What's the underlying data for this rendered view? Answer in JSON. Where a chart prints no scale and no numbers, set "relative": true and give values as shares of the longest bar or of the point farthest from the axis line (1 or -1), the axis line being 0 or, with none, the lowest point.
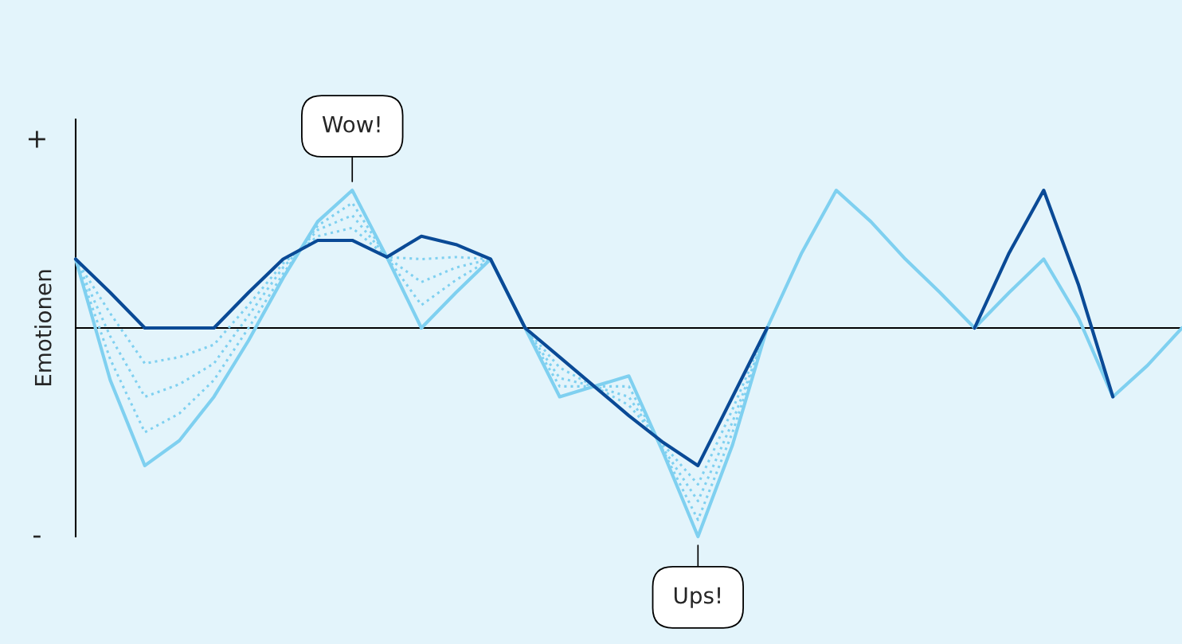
{
  "chart_data": {
    "type": "line",
    "relative": true,
    "ylabel": "Emotionen",
    "legend": false,
    "marker": "none",
    "categories": [
      null,
      null,
      null,
      null,
      null,
      null,
      null,
      null,
      null,
      null,
      null,
      null,
      null,
      null,
      null,
      null,
      null,
      null,
      null,
      null,
      null,
      null,
      null,
      null,
      null,
      null,
      null,
      null,
      null,
      null,
      null,
      null,
      null
    ],
    "series": [
      {
        "color": "#7fd0f0",
        "line_style": "solid",
        "values": [
          0.33,
          -0.25,
          -0.66,
          -0.54,
          -0.33,
          -0.06,
          0.24,
          0.51,
          0.66,
          0.34,
          0,
          0.17,
          0.33,
          0,
          -0.33,
          -0.28,
          -0.23,
          -0.6,
          -1,
          -0.56,
          0,
          0.36,
          0.66,
          0.51,
          0.33,
          0.17,
          0,
          0.17,
          0.33,
          0.05,
          -0.33,
          -0.18,
          0
        ]
      },
      {
        "color": "#7fd0f0",
        "line_style": "dotted",
        "values": [
          0.33,
          0.07,
          -0.17,
          -0.14,
          -0.08,
          0.11,
          0.31,
          0.44,
          0.48,
          0.34,
          0.33,
          0.34,
          0.33,
          0,
          -0.19,
          -0.28,
          -0.37,
          -0.56,
          -0.75,
          -0.39,
          0,
          null,
          null,
          null,
          null,
          null,
          null,
          null,
          null,
          null,
          null,
          null,
          null
        ]
      },
      {
        "color": "#7fd0f0",
        "line_style": "dotted",
        "values": [
          0.33,
          -0.04,
          -0.33,
          -0.27,
          -0.17,
          0.06,
          0.29,
          0.47,
          0.54,
          0.34,
          0.22,
          0.29,
          0.33,
          0,
          -0.24,
          -0.28,
          -0.33,
          -0.58,
          -0.83,
          -0.45,
          0,
          null,
          null,
          null,
          null,
          null,
          null,
          null,
          null,
          null,
          null,
          null,
          null
        ]
      },
      {
        "color": "#7fd0f0",
        "line_style": "dotted",
        "values": [
          0.33,
          -0.15,
          -0.5,
          -0.41,
          -0.25,
          0,
          0.26,
          0.49,
          0.6,
          0.34,
          0.11,
          0.23,
          0.33,
          0,
          -0.28,
          -0.28,
          -0.28,
          -0.59,
          -0.92,
          -0.5,
          0,
          null,
          null,
          null,
          null,
          null,
          null,
          null,
          null,
          null,
          null,
          null,
          null
        ]
      },
      {
        "color": "#0a4a96",
        "line_style": "solid",
        "values": [
          0.33,
          0.17,
          0,
          0,
          0,
          0.17,
          0.33,
          0.42,
          0.42,
          0.34,
          0.44,
          0.4,
          0.33,
          0,
          -0.14,
          -0.28,
          -0.42,
          -0.55,
          -0.66,
          -0.33,
          0,
          null,
          null,
          null,
          null,
          null,
          0,
          0.36,
          0.66,
          0.21,
          -0.33,
          null,
          null
        ]
      }
    ],
    "annotations": [
      "Wow!",
      "Ups!",
      "+",
      "-"
    ]
  }
}
